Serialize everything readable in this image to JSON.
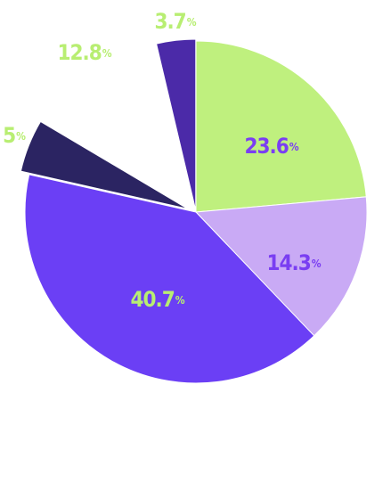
{
  "chart_data": {
    "type": "pie",
    "unit": "%",
    "categories": [
      null,
      null,
      null,
      null,
      null,
      null
    ],
    "values": [
      23.6,
      14.3,
      40.7,
      5,
      12.8,
      3.7
    ],
    "colors": [
      "#bff07e",
      "#c9aaf5",
      "#6b3ff5",
      "#2b2462",
      "#ffffff",
      "#4b2aa8"
    ],
    "label_colors": [
      "#7a3ef2",
      "#7a3ef2",
      "#b8ee72",
      "#b8ee72",
      "#b8ee72",
      "#b8ee72"
    ]
  }
}
